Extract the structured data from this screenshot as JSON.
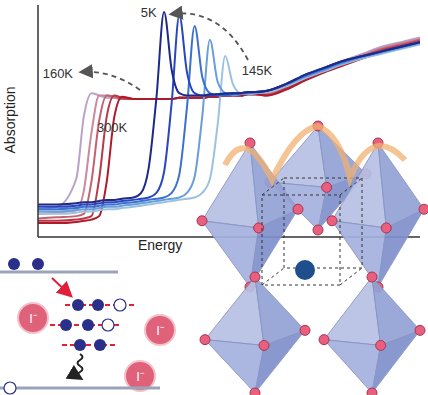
{
  "chart_data": {
    "type": "line",
    "x_label": "Energy",
    "y_label": "Absorption",
    "xlim": [
      0,
      100
    ],
    "ylim": [
      0,
      100
    ],
    "tick_labels": false,
    "grid": false,
    "x": [
      0,
      5,
      10,
      12,
      14,
      16,
      18,
      20,
      22,
      25,
      27,
      29,
      31,
      33,
      35,
      37,
      39,
      41,
      43,
      45,
      47,
      49,
      51,
      53,
      55,
      57,
      60,
      65,
      70,
      75,
      80,
      85,
      90,
      95,
      100
    ],
    "series": [
      {
        "color": "#b8a3c9",
        "values": [
          12,
          13,
          25,
          52,
          62,
          61,
          60,
          60,
          59.5,
          59.5,
          59.5,
          59.5,
          59.5,
          59.5,
          59.5,
          60,
          60,
          60,
          60,
          60.5,
          60.5,
          61,
          61,
          61,
          61.5,
          61.5,
          62,
          65,
          69,
          73,
          76,
          79,
          82,
          84,
          86
        ]
      },
      {
        "color": "#c98a9c",
        "values": [
          10,
          10.5,
          11.5,
          20,
          45,
          61,
          61,
          60,
          59.5,
          59.5,
          59.5,
          59.5,
          59.5,
          59.5,
          59.5,
          60,
          60,
          60,
          60,
          60.5,
          60.5,
          61,
          61,
          61,
          61.5,
          61.5,
          61.5,
          64.5,
          68.5,
          72.5,
          75.5,
          78.5,
          81.5,
          83.5,
          85.5
        ]
      },
      {
        "color": "#c46070",
        "values": [
          8,
          8.5,
          9,
          10,
          24,
          50,
          61,
          60.5,
          59.5,
          59.5,
          59.5,
          59.5,
          59.5,
          59.5,
          59.5,
          60,
          60,
          60,
          60,
          60.5,
          60.5,
          61,
          61,
          61,
          61.5,
          61.5,
          61.5,
          64,
          68,
          72,
          75,
          78,
          81,
          83,
          85
        ]
      },
      {
        "color": "#b83a48",
        "values": [
          7,
          7,
          7.5,
          8,
          9,
          25,
          52,
          61,
          60,
          59.5,
          59.5,
          59.5,
          59.5,
          59.5,
          59.5,
          60,
          60,
          60,
          60,
          60.5,
          60.5,
          61,
          61,
          61,
          61.5,
          61.5,
          61,
          64,
          68,
          71.5,
          74.5,
          77.5,
          80.5,
          82.5,
          84.5
        ]
      },
      {
        "color": "#b01a2a",
        "values": [
          6,
          6,
          6.5,
          7,
          7.5,
          9,
          24,
          52,
          60.5,
          59.5,
          59.5,
          59.5,
          59.5,
          59.5,
          59.5,
          60,
          60,
          60,
          60,
          60.5,
          60.5,
          61,
          61,
          61,
          61.5,
          61.5,
          61,
          63.5,
          67.5,
          71,
          74,
          77,
          80,
          82,
          84
        ]
      },
      {
        "color": "#9cc2e0",
        "values": [
          10,
          10,
          10.5,
          11,
          11,
          11.5,
          12,
          12,
          12.5,
          13,
          13.5,
          14,
          14.5,
          15,
          15.5,
          16,
          16.5,
          17,
          19,
          25,
          48,
          78,
          66,
          62,
          61.5,
          62,
          62.5,
          65,
          68.5,
          71.5,
          74.5,
          77,
          79,
          81,
          83
        ]
      },
      {
        "color": "#6a9ed8",
        "values": [
          11,
          11,
          11.5,
          12,
          12,
          12.5,
          13,
          13,
          13.5,
          14,
          14.5,
          15,
          15.5,
          16,
          16.5,
          17,
          19,
          26,
          52,
          85,
          67,
          62,
          61,
          61.5,
          62,
          62,
          63,
          65.5,
          69,
          72,
          75,
          77.5,
          79.5,
          81.5,
          83.5
        ]
      },
      {
        "color": "#3a70d0",
        "values": [
          12,
          12,
          12.5,
          13,
          13,
          13.5,
          14,
          14,
          14.5,
          15,
          15.5,
          16,
          16.5,
          17,
          19,
          27,
          56,
          91,
          69,
          62,
          61,
          61,
          61.5,
          62,
          62,
          62.5,
          63,
          66,
          69.5,
          72.5,
          75.5,
          78,
          80,
          82,
          84
        ]
      },
      {
        "color": "#2846c0",
        "values": [
          13,
          13,
          13.5,
          14,
          14,
          14.5,
          15,
          15,
          15.5,
          16,
          16.5,
          17,
          19,
          28,
          58,
          95.5,
          71,
          62,
          61,
          61,
          61.5,
          61.5,
          62,
          62,
          62.5,
          62.5,
          63,
          66,
          70,
          73,
          76,
          78,
          80,
          82,
          84
        ]
      },
      {
        "color": "#1e2a8a",
        "values": [
          14,
          14,
          14.5,
          15,
          15,
          15.5,
          16,
          16,
          16.5,
          17,
          19,
          30,
          60,
          97,
          72,
          62,
          61,
          61,
          61,
          61.5,
          61.5,
          62,
          62,
          62,
          62.5,
          62.5,
          63,
          66,
          70,
          73,
          76,
          78,
          80,
          82,
          84
        ]
      }
    ],
    "annotations": [
      {
        "text": "5K",
        "x": 29,
        "y": 97
      },
      {
        "text": "145K",
        "x": 57.3,
        "y": 72
      },
      {
        "text": "160K",
        "x": 5.2,
        "y": 70.7
      },
      {
        "text": "300K",
        "x": 19.4,
        "y": 47.4
      }
    ]
  },
  "diagram": {
    "ion_label": "I⁻"
  }
}
